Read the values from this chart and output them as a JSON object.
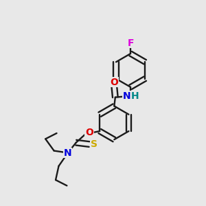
{
  "bg_color": "#e8e8e8",
  "colors": {
    "bond": "#1a1a1a",
    "N": "#0000dd",
    "O": "#dd0000",
    "S": "#ccaa00",
    "F": "#dd00dd",
    "H": "#008888"
  },
  "lw": 1.7,
  "dbo": 0.012,
  "r": 0.082
}
